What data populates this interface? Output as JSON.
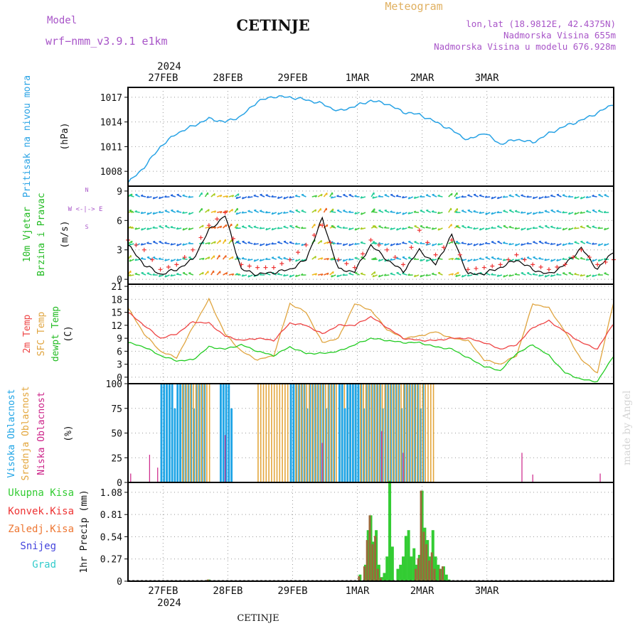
{
  "header": {
    "model_label": "Model",
    "model_name": "wrf−nmm_v3.9.1  e1km",
    "station_title": "CETINJE",
    "meteogram_label": "Meteogram",
    "coords": "lon,lat (18.9812E, 42.4375N)",
    "altitude": "Nadmorska Visina 655m",
    "model_altitude": "Nadmorska Visina u modelu 676.928m",
    "watermark": "made by Angel",
    "footer_station": "CETINJE"
  },
  "time_axis": {
    "year": "2024",
    "day_labels": [
      "27FEB",
      "28FEB",
      "29FEB",
      "1MAR",
      "2MAR",
      "3MAR"
    ],
    "start_hour_offset": 13
  },
  "colors": {
    "pressure": "#29a3e5",
    "temp2m": "#ee4444",
    "sfc_temp": "#e0a540",
    "dewpoint": "#22cc22",
    "high_cloud": "#1ea4e6",
    "mid_cloud": "#e3a63c",
    "low_cloud": "#cc2288",
    "total_precip": "#33cc33",
    "conv_precip": "#ee3333",
    "frozen_precip": "#ee7733",
    "snow": "#4444dd",
    "graupel": "#33cccc",
    "wind_speed_line": "#000000",
    "gust_marks": "#ee3333"
  },
  "panels": {
    "pressure": {
      "label": "Pritisak na nivou mora",
      "unit": "(hPa)",
      "ticks": [
        "1008",
        "1011",
        "1014",
        "1017"
      ]
    },
    "wind": {
      "label1": "10m Vjetar",
      "label2": "Brzina i Pravac",
      "unit": "(m/s)",
      "ticks": [
        "0",
        "3",
        "6",
        "9"
      ],
      "compass": "W <-|-> E",
      "compass_n": "N",
      "compass_s": "S"
    },
    "temp": {
      "label1": "2m Temp",
      "label2": "SFC Temp",
      "label3": "dewpt Temp",
      "unit": "(C)",
      "ticks": [
        "0",
        "3",
        "6",
        "9",
        "12",
        "15",
        "18",
        "21"
      ]
    },
    "cloud": {
      "label1": "Visoka Oblacnost",
      "label2": "Srednja Oblacnost",
      "label3": "Niska Oblacnost",
      "unit": "(%)",
      "ticks": [
        "0",
        "25",
        "50",
        "75",
        "100"
      ]
    },
    "precip": {
      "legend": [
        "Ukupna Kisa",
        "Konvek.Kisa",
        "Zaledj.Kisa",
        "Snijeg",
        "Grad"
      ],
      "unit": "1hr Precip (mm)",
      "ticks": [
        "0",
        "0.27",
        "0.54",
        "0.81",
        "1.08"
      ]
    }
  },
  "chart_data": [
    {
      "type": "line",
      "title": "Pritisak na nivou mora",
      "ylabel": "(hPa)",
      "ylim": [
        1006.2,
        1018.2
      ],
      "x_hours": [
        0,
        6,
        12,
        18,
        24,
        30,
        36,
        42,
        48,
        54,
        60,
        66,
        72,
        78,
        84,
        90,
        96,
        102,
        108,
        114,
        120,
        126,
        132,
        138,
        144,
        150,
        156,
        162,
        168,
        174,
        180
      ],
      "series": [
        {
          "values": [
            1006.6,
            1008.5,
            1011.0,
            1012.6,
            1013.5,
            1014.4,
            1014.0,
            1014.7,
            1016.5,
            1017.1,
            1017.0,
            1016.7,
            1016.2,
            1015.3,
            1015.9,
            1016.6,
            1016.2,
            1015.2,
            1014.9,
            1014.0,
            1013.0,
            1011.8,
            1012.7,
            1011.3,
            1011.9,
            1011.5,
            1012.6,
            1013.5,
            1014.2,
            1015.1,
            1016.2
          ]
        }
      ]
    },
    {
      "type": "line",
      "title": "10m Vjetar Brzina i Pravac",
      "ylabel": "(m/s)",
      "ylim": [
        -0.5,
        9.5
      ],
      "x_hours": [
        0,
        6,
        12,
        18,
        24,
        30,
        36,
        42,
        48,
        54,
        60,
        66,
        72,
        78,
        84,
        90,
        96,
        102,
        108,
        114,
        120,
        126,
        132,
        138,
        144,
        150,
        156,
        162,
        168,
        174,
        180
      ],
      "series": [
        {
          "name": "speed",
          "values": [
            3.5,
            1.5,
            0.5,
            1.0,
            2.0,
            5.0,
            6.5,
            1.0,
            0.5,
            0.7,
            1.0,
            2.0,
            6.2,
            1.0,
            0.8,
            3.5,
            2.0,
            0.8,
            3.0,
            1.5,
            4.5,
            0.5,
            0.6,
            1.2,
            2.0,
            1.0,
            0.5,
            1.5,
            3.2,
            1.0,
            2.9
          ]
        },
        {
          "name": "gust",
          "values": [
            4.0,
            3.0,
            1.0,
            1.5,
            3.0,
            5.5,
            6.8,
            1.5,
            1.2,
            1.2,
            2.0,
            3.5,
            5.5,
            2.0,
            1.2,
            4.0,
            3.0,
            1.5,
            5.0,
            2.5,
            4.0,
            1.0,
            1.2,
            1.5,
            2.5,
            1.5,
            1.0,
            1.5,
            3.0,
            1.5,
            2.0
          ]
        }
      ]
    },
    {
      "type": "line",
      "title": "2m Temp / SFC Temp / dewpt Temp",
      "ylabel": "(C)",
      "ylim": [
        -1.5,
        21.5
      ],
      "x_hours": [
        0,
        6,
        12,
        18,
        24,
        30,
        36,
        42,
        48,
        54,
        60,
        66,
        72,
        78,
        84,
        90,
        96,
        102,
        108,
        114,
        120,
        126,
        132,
        138,
        144,
        150,
        156,
        162,
        168,
        174,
        180
      ],
      "series": [
        {
          "name": "2m Temp",
          "values": [
            15.0,
            12.0,
            9.0,
            10.0,
            12.8,
            12.5,
            9.5,
            8.5,
            9.0,
            8.5,
            12.5,
            12.0,
            10.0,
            12.0,
            12.0,
            14.0,
            11.5,
            9.0,
            8.5,
            8.5,
            9.0,
            9.0,
            8.0,
            6.5,
            7.5,
            11.5,
            13.0,
            10.5,
            8.0,
            6.5,
            12.5
          ]
        },
        {
          "name": "SFC Temp",
          "values": [
            16.0,
            10.0,
            6.0,
            4.5,
            11.5,
            18.0,
            10.0,
            6.0,
            4.0,
            5.0,
            17.0,
            15.0,
            8.0,
            9.0,
            17.0,
            15.5,
            11.0,
            9.0,
            9.5,
            10.5,
            9.0,
            8.5,
            4.0,
            3.0,
            5.0,
            17.0,
            16.0,
            10.5,
            4.0,
            1.0,
            17.5
          ]
        },
        {
          "name": "dewpt Temp",
          "values": [
            8.0,
            7.0,
            5.0,
            3.8,
            4.0,
            7.0,
            6.5,
            7.5,
            6.0,
            5.0,
            7.0,
            5.5,
            5.5,
            6.0,
            7.5,
            9.0,
            8.5,
            8.0,
            8.0,
            7.0,
            6.5,
            4.5,
            2.5,
            1.5,
            5.5,
            7.5,
            5.0,
            1.0,
            -0.5,
            -1.0,
            5.0
          ]
        }
      ]
    },
    {
      "type": "bar",
      "title": "Visoka / Srednja / Niska Oblacnost",
      "ylabel": "(%)",
      "ylim": [
        0,
        100
      ],
      "segments": [
        {
          "name": "high",
          "from_hour": 12,
          "to_hour": 29,
          "value": 100
        },
        {
          "name": "high",
          "from_hour": 34,
          "to_hour": 39,
          "value": 100
        },
        {
          "name": "mid",
          "from_hour": 20,
          "to_hour": 31,
          "value": 100
        },
        {
          "name": "mid",
          "from_hour": 48,
          "to_hour": 60,
          "value": 100
        },
        {
          "name": "high",
          "from_hour": 60,
          "to_hour": 77,
          "value": 100
        },
        {
          "name": "mid",
          "from_hour": 62,
          "to_hour": 96,
          "value": 100
        },
        {
          "name": "high",
          "from_hour": 78,
          "to_hour": 110,
          "value": 100
        },
        {
          "name": "mid",
          "from_hour": 86,
          "to_hour": 114,
          "value": 100
        }
      ],
      "low_spikes": [
        {
          "hour": 1,
          "value": 9
        },
        {
          "hour": 8,
          "value": 28
        },
        {
          "hour": 11,
          "value": 15
        },
        {
          "hour": 36,
          "value": 48
        },
        {
          "hour": 72,
          "value": 40
        },
        {
          "hour": 94,
          "value": 52
        },
        {
          "hour": 102,
          "value": 30
        },
        {
          "hour": 146,
          "value": 30
        },
        {
          "hour": 150,
          "value": 8
        },
        {
          "hour": 175,
          "value": 9
        }
      ]
    },
    {
      "type": "bar",
      "title": "1hr Precip",
      "ylabel": "1hr Precip (mm)",
      "ylim": [
        0,
        1.2
      ],
      "bars_hours": [
        30,
        86,
        88,
        89,
        90,
        91,
        92,
        93,
        94,
        95,
        96,
        97,
        98,
        100,
        101,
        102,
        103,
        104,
        105,
        106,
        107,
        108,
        109,
        110,
        111,
        112,
        113,
        114,
        115,
        116,
        117,
        118,
        119
      ],
      "series": [
        {
          "name": "Ukupna Kisa",
          "values": [
            0.02,
            0.08,
            0.2,
            0.62,
            0.8,
            0.48,
            0.62,
            0.2,
            0.05,
            0.1,
            0.3,
            1.22,
            0.42,
            0.15,
            0.2,
            0.3,
            0.55,
            0.62,
            0.3,
            0.4,
            0.2,
            0.32,
            1.1,
            0.65,
            0.5,
            0.3,
            0.62,
            0.3,
            0.2,
            0.15,
            0.18,
            0.08,
            0.02
          ]
        },
        {
          "name": "Konvek.Kisa",
          "values": [
            0.02,
            0.06,
            0.18,
            0.5,
            0.8,
            0.45,
            0.55,
            0.15,
            0.04,
            0.0,
            0.0,
            0.0,
            0.0,
            0.0,
            0.0,
            0.0,
            0.0,
            0.0,
            0.0,
            0.0,
            0.15,
            0.28,
            1.1,
            0.6,
            0.45,
            0.25,
            0.35,
            0.15,
            0.0,
            0.15,
            0.18,
            0.0,
            0.0
          ]
        }
      ]
    }
  ]
}
